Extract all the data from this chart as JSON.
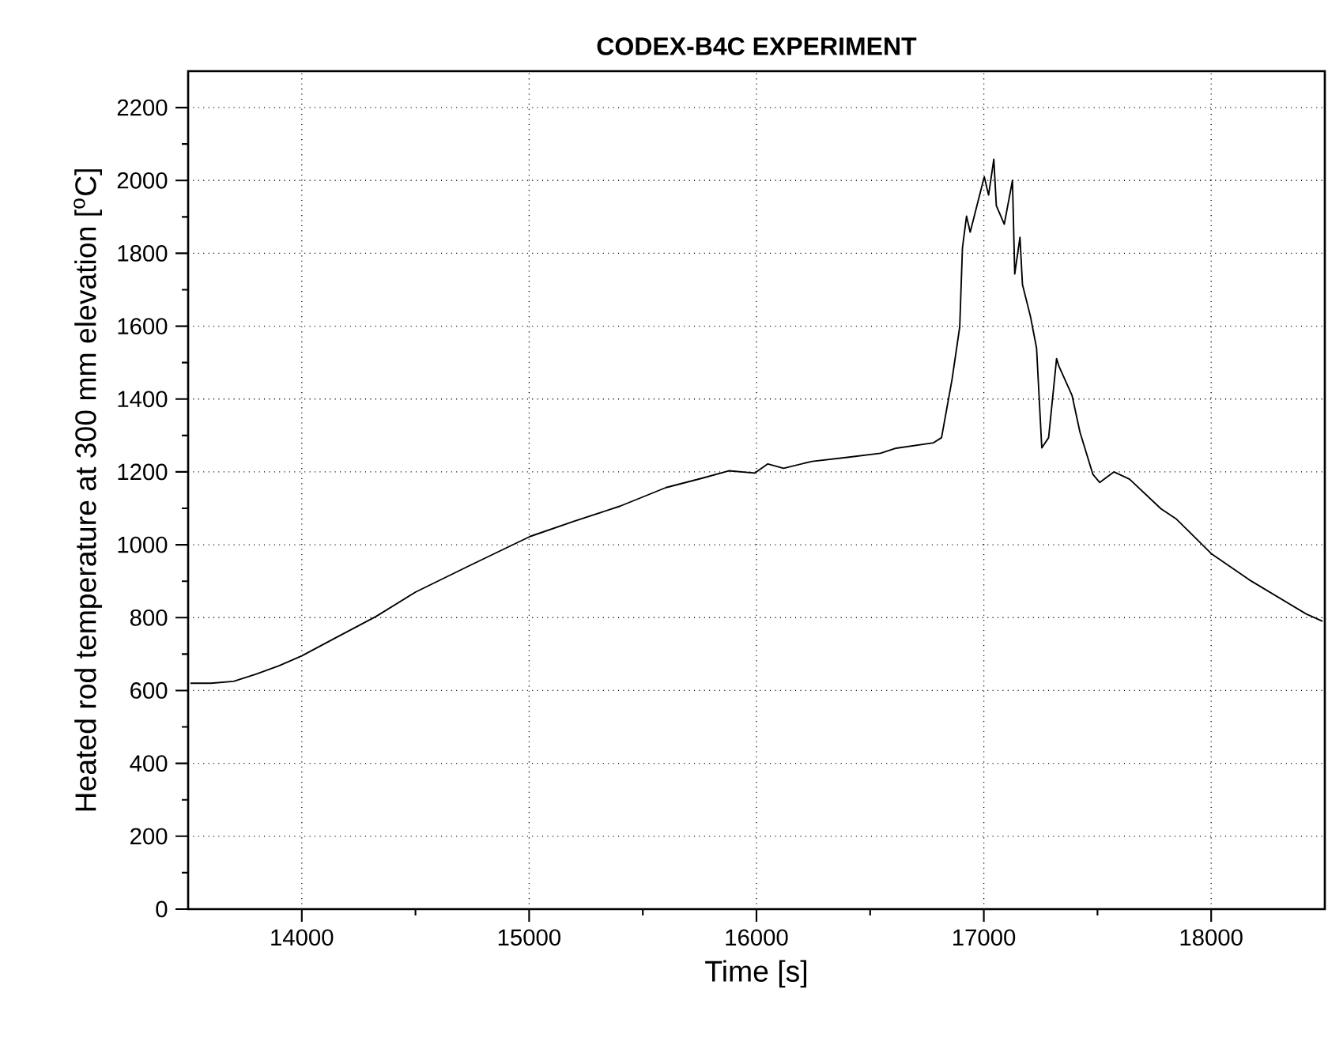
{
  "chart_data": {
    "type": "line",
    "title": "CODEX-B4C  EXPERIMENT",
    "xlabel": "Time   [s]",
    "ylabel": "Heated rod temperature at 300 mm elevation   [$^{o}$C]",
    "xlim": [
      13500,
      18500
    ],
    "ylim": [
      0,
      2300
    ],
    "xticks": [
      14000,
      15000,
      16000,
      17000,
      18000
    ],
    "yticks": [
      0,
      200,
      400,
      600,
      800,
      1000,
      1200,
      1400,
      1600,
      1800,
      2000,
      2200
    ],
    "grid": true,
    "marker": "none",
    "line_style": "solid",
    "series": [
      {
        "color": "#000000",
        "x": [
          13510,
          13600,
          13700,
          13800,
          13900,
          14000,
          14150,
          14326,
          14500,
          14752,
          15005,
          15200,
          15400,
          15602,
          15763,
          15878,
          15993,
          16050,
          16119,
          16245,
          16400,
          16545,
          16614,
          16779,
          16814,
          16860,
          16894,
          16906,
          16924,
          16940,
          17002,
          17021,
          17044,
          17055,
          17090,
          17126,
          17136,
          17159,
          17170,
          17205,
          17232,
          17255,
          17285,
          17320,
          17331,
          17388,
          17423,
          17480,
          17510,
          17572,
          17641,
          17779,
          17848,
          18000,
          18167,
          18418,
          18490
        ],
        "values": [
          620,
          620,
          625,
          645,
          668,
          695,
          745,
          803,
          870,
          947,
          1023,
          1065,
          1106,
          1157,
          1183,
          1203,
          1197,
          1222,
          1210,
          1229,
          1240,
          1251,
          1265,
          1280,
          1294,
          1453,
          1598,
          1815,
          1902,
          1858,
          2010,
          1960,
          2058,
          1931,
          1880,
          2000,
          1743,
          1844,
          1714,
          1627,
          1540,
          1266,
          1294,
          1511,
          1489,
          1410,
          1309,
          1193,
          1171,
          1200,
          1180,
          1099,
          1070,
          976,
          904,
          810,
          790
        ]
      }
    ]
  }
}
